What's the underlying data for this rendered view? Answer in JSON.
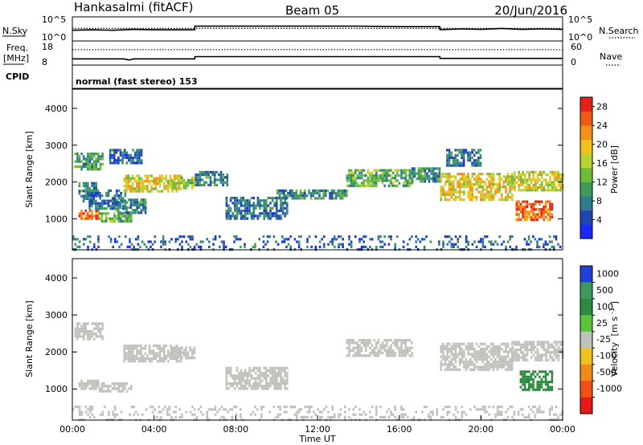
{
  "header": {
    "station": "Hankasalmi (fitACF)",
    "beam": "Beam 05",
    "date": "20/Jun/2016"
  },
  "chart_data": [
    {
      "type": "line",
      "panel": "noise",
      "left_label": "N.Sky",
      "right_label": "N.Search",
      "left_ticks": [
        "10^5",
        "10^0"
      ],
      "right_ticks": [
        "10^5",
        "10^0"
      ],
      "series": [
        {
          "name": "N.Sky",
          "style": "solid",
          "x": [
            0,
            1,
            2,
            3,
            4,
            5,
            5.99,
            6,
            8,
            10,
            12,
            14,
            16,
            17.99,
            18,
            19,
            20,
            21,
            22,
            23,
            24
          ],
          "y": [
            2.2,
            2.3,
            2.2,
            2.4,
            2.3,
            2.3,
            2.3,
            3.1,
            3.1,
            3.1,
            3.1,
            3.1,
            3.0,
            3.0,
            2.3,
            2.5,
            2.4,
            2.6,
            2.4,
            2.5,
            2.4
          ]
        },
        {
          "name": "N.Search",
          "style": "dotted",
          "x": [
            0,
            24
          ],
          "y": [
            2.6,
            2.6
          ]
        }
      ]
    },
    {
      "type": "line",
      "panel": "frequency",
      "left_label": "Freq.",
      "left_unit": "[MHz]",
      "right_label": "Nave",
      "left_ticks": [
        "18",
        "8"
      ],
      "right_ticks": [
        "60",
        "0"
      ],
      "ylim_left": [
        8,
        18
      ],
      "ylim_right": [
        0,
        60
      ],
      "series": [
        {
          "name": "Freq",
          "style": "solid",
          "x": [
            0,
            2.5,
            2.8,
            3,
            5.99,
            6,
            17.99,
            18,
            24
          ],
          "y": [
            10.4,
            10.4,
            9.9,
            10.4,
            10.4,
            11.4,
            11.4,
            10.6,
            10.6
          ]
        },
        {
          "name": "Nave",
          "style": "dotted",
          "x": [
            0,
            24
          ],
          "y": [
            39,
            39
          ]
        }
      ]
    },
    {
      "type": "label",
      "panel": "cpid",
      "label": "CPID",
      "text": "normal (fast stereo) 153"
    },
    {
      "type": "heatmap",
      "panel": "power",
      "ylabel": "Slant Range [km]",
      "xlim": [
        0,
        24
      ],
      "ylim": [
        180,
        4500
      ],
      "yticks": [
        "4000",
        "3000",
        "2000",
        "1000"
      ],
      "ytick_values": [
        4000,
        3000,
        2000,
        1000
      ],
      "colorbar": {
        "label": "Power [dB]",
        "ticks": [
          "28",
          "24",
          "20",
          "16",
          "12",
          "8",
          "4"
        ],
        "range": [
          0,
          30
        ],
        "colors": [
          "#1a2aff",
          "#2046b0",
          "#2e7c90",
          "#3f9a5a",
          "#6cbc38",
          "#b8d232",
          "#f2c11c",
          "#f29018",
          "#f05a14",
          "#e8201a"
        ]
      },
      "regions": [
        {
          "t": [
            0.1,
            1.5
          ],
          "r": [
            2350,
            2800
          ],
          "value": 10
        },
        {
          "t": [
            0.3,
            1.2
          ],
          "r": [
            1500,
            2000
          ],
          "value": 9
        },
        {
          "t": [
            0.3,
            1.3
          ],
          "r": [
            1000,
            1250
          ],
          "value": 24
        },
        {
          "t": [
            0.8,
            2.6
          ],
          "r": [
            1300,
            1800
          ],
          "value": 7
        },
        {
          "t": [
            1.3,
            2.9
          ],
          "r": [
            960,
            1180
          ],
          "value": 12
        },
        {
          "t": [
            1.8,
            3.4
          ],
          "r": [
            2500,
            2900
          ],
          "value": 6
        },
        {
          "t": [
            2.1,
            3.6
          ],
          "r": [
            1200,
            1550
          ],
          "value": 8
        },
        {
          "t": [
            2.5,
            5.3
          ],
          "r": [
            1750,
            2200
          ],
          "value": 18
        },
        {
          "t": [
            4.8,
            6.0
          ],
          "r": [
            1850,
            2150
          ],
          "value": 16
        },
        {
          "t": [
            6.0,
            7.6
          ],
          "r": [
            1900,
            2300
          ],
          "value": 8
        },
        {
          "t": [
            7.5,
            10.5
          ],
          "r": [
            1000,
            1600
          ],
          "value": 7
        },
        {
          "t": [
            10.0,
            13.4
          ],
          "r": [
            1550,
            1800
          ],
          "value": 9
        },
        {
          "t": [
            13.4,
            16.6
          ],
          "r": [
            1900,
            2350
          ],
          "value": 12
        },
        {
          "t": [
            16.6,
            18.0
          ],
          "r": [
            2000,
            2400
          ],
          "value": 9
        },
        {
          "t": [
            18.0,
            21.5
          ],
          "r": [
            1550,
            2250
          ],
          "value": 19
        },
        {
          "t": [
            21.5,
            24.0
          ],
          "r": [
            1750,
            2300
          ],
          "value": 17
        },
        {
          "t": [
            21.7,
            23.5
          ],
          "r": [
            1000,
            1500
          ],
          "value": 25
        },
        {
          "t": [
            18.3,
            20.0
          ],
          "r": [
            2450,
            2900
          ],
          "value": 7
        },
        {
          "t": [
            0.0,
            24.0
          ],
          "r": [
            200,
            550
          ],
          "value": 6
        }
      ]
    },
    {
      "type": "heatmap",
      "panel": "velocity",
      "ylabel": "Slant Range [km]",
      "xlabel": "Time UT",
      "xticks": [
        "00:00",
        "04:00",
        "08:00",
        "12:00",
        "16:00",
        "20:00",
        "00:00"
      ],
      "xtick_values": [
        0,
        4,
        8,
        12,
        16,
        20,
        24
      ],
      "xlim": [
        0,
        24
      ],
      "ylim": [
        180,
        4500
      ],
      "yticks": [
        "4000",
        "3000",
        "2000",
        "1000"
      ],
      "ytick_values": [
        4000,
        3000,
        2000,
        1000
      ],
      "colorbar": {
        "label": "Velocity",
        "unit": "[m s",
        "unit_exp": "-1",
        "unit_close": "]",
        "ticks": [
          "1000",
          "500",
          "100",
          "25",
          "-25",
          "-100",
          "-500",
          "-1000"
        ],
        "levels": [
          1000,
          500,
          100,
          25,
          -25,
          -100,
          -500,
          -1000
        ],
        "colors": [
          "#2040d8",
          "#3e9a5c",
          "#2e8a3e",
          "#5cc43a",
          "#c2c2bc",
          "#f0c21c",
          "#f28a18",
          "#f05014",
          "#e81818"
        ]
      },
      "regions": [
        {
          "t": [
            0.1,
            1.5
          ],
          "r": [
            2350,
            2800
          ],
          "value": 0
        },
        {
          "t": [
            0.3,
            1.3
          ],
          "r": [
            1000,
            1250
          ],
          "value": 0
        },
        {
          "t": [
            1.3,
            2.9
          ],
          "r": [
            960,
            1180
          ],
          "value": 0
        },
        {
          "t": [
            2.5,
            5.3
          ],
          "r": [
            1750,
            2200
          ],
          "value": 0
        },
        {
          "t": [
            4.8,
            6.0
          ],
          "r": [
            1850,
            2150
          ],
          "value": 0
        },
        {
          "t": [
            7.5,
            10.5
          ],
          "r": [
            1000,
            1600
          ],
          "value": 0
        },
        {
          "t": [
            13.4,
            16.6
          ],
          "r": [
            1900,
            2350
          ],
          "value": 0
        },
        {
          "t": [
            18.0,
            21.5
          ],
          "r": [
            1550,
            2250
          ],
          "value": 0
        },
        {
          "t": [
            21.5,
            24.0
          ],
          "r": [
            1750,
            2300
          ],
          "value": 0
        },
        {
          "t": [
            21.9,
            23.5
          ],
          "r": [
            1000,
            1500
          ],
          "value": 150
        },
        {
          "t": [
            0.0,
            24.0
          ],
          "r": [
            200,
            550
          ],
          "value": 0
        }
      ]
    }
  ]
}
